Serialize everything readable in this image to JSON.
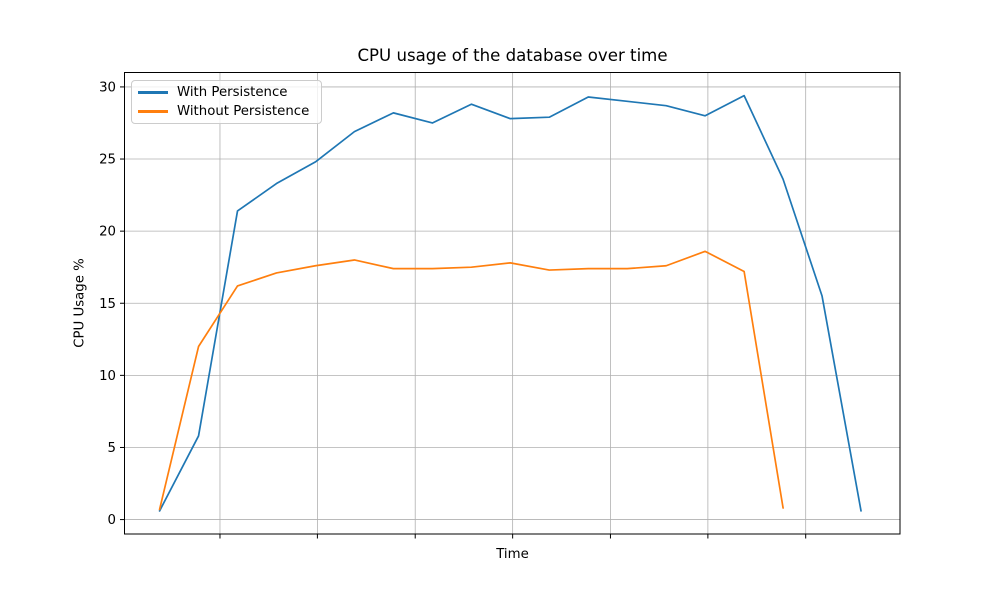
{
  "chart_data": {
    "type": "line",
    "title": "CPU usage of the database over time",
    "xlabel": "Time",
    "ylabel": "CPU Usage %",
    "grid": true,
    "legend_position": "upper left",
    "ylim": [
      -1,
      31
    ],
    "xlim": [
      -0.9,
      19.0
    ],
    "yticks": [
      0,
      5,
      10,
      15,
      20,
      25,
      30
    ],
    "ytick_labels": [
      "0",
      "5",
      "10",
      "15",
      "20",
      "25",
      "30"
    ],
    "xticks": [
      1.55,
      4.05,
      6.56,
      9.06,
      11.57,
      14.07,
      16.58
    ],
    "xtick_labels": [
      "",
      "",
      "",
      "",
      "",
      "",
      ""
    ],
    "series": [
      {
        "name": "With Persistence",
        "color": "#1f77b4",
        "x": [
          0,
          1,
          2,
          3,
          4,
          5,
          6,
          7,
          8,
          9,
          10,
          11,
          12,
          13,
          14,
          15,
          16,
          17,
          18
        ],
        "values": [
          0.6,
          5.8,
          21.4,
          23.3,
          24.8,
          26.9,
          28.2,
          27.5,
          28.8,
          27.8,
          27.9,
          29.3,
          29.0,
          28.7,
          28.0,
          29.4,
          23.6,
          15.5,
          0.6
        ]
      },
      {
        "name": "Without Persistence",
        "color": "#ff7f0e",
        "x": [
          0,
          1,
          2,
          3,
          4,
          5,
          6,
          7,
          8,
          9,
          10,
          11,
          12,
          13,
          14,
          15,
          16
        ],
        "values": [
          0.7,
          12.0,
          16.2,
          17.1,
          17.6,
          18.0,
          17.4,
          17.4,
          17.5,
          17.8,
          17.3,
          17.4,
          17.4,
          17.6,
          18.6,
          17.2,
          0.8
        ]
      }
    ],
    "colors": {
      "grid": "#b0b0b0",
      "axis": "#000000",
      "background": "#ffffff"
    }
  }
}
